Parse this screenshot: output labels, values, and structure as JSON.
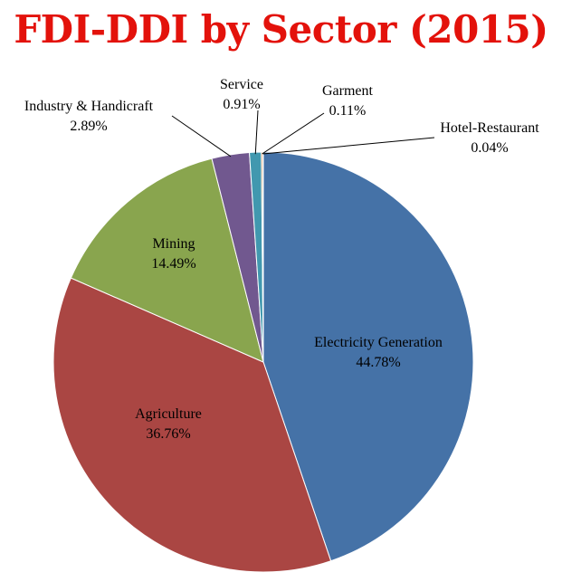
{
  "chart_data": {
    "type": "pie",
    "title": "FDI-DDI by Sector (2015)",
    "title_color": "#e3120b",
    "start_angle_deg": 0,
    "direction": "clockwise",
    "slices": [
      {
        "label": "Electricity Generation",
        "value": 44.78,
        "value_label": "44.78%",
        "color": "#4572a7"
      },
      {
        "label": "Agriculture",
        "value": 36.76,
        "value_label": "36.76%",
        "color": "#aa4643"
      },
      {
        "label": "Mining",
        "value": 14.49,
        "value_label": "14.49%",
        "color": "#89a54e"
      },
      {
        "label": "Industry & Handicraft",
        "value": 2.89,
        "value_label": "2.89%",
        "color": "#71588f"
      },
      {
        "label": "Service",
        "value": 0.91,
        "value_label": "0.91%",
        "color": "#4198af"
      },
      {
        "label": "Garment",
        "value": 0.11,
        "value_label": "0.11%",
        "color": "#db843d"
      },
      {
        "label": "Hotel-Restaurant",
        "value": 0.04,
        "value_label": "0.04%",
        "color": "#93a9cf"
      }
    ]
  }
}
